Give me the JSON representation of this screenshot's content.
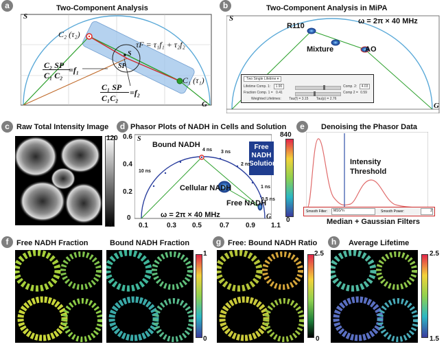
{
  "panels": {
    "a": {
      "badge": "a",
      "title": "Two-Component Analysis",
      "axis_s": "S",
      "axis_g": "G",
      "c2_label": "C₂ (τ₂)",
      "c1_label": "C₁ (τ₁)",
      "tau_f_eq": "τF = τ₁f₁ + τ₂f₂",
      "sp_label": "SP",
      "s_label": "S",
      "frac1_num": "C₂ SP",
      "frac1_den": "C₁ C₂",
      "frac1_eq": "=f₁",
      "frac2_num": "C₁ SP",
      "frac2_den": "C₁C₂",
      "frac2_eq": "=f₂"
    },
    "b": {
      "badge": "b",
      "title": "Two-Component Analysis in MiPA",
      "axis_s": "S",
      "axis_g": "G",
      "omega": "ω = 2π × 40 MHz",
      "label_r110": "R110",
      "label_mixture": "Mixture",
      "label_ao": "AO",
      "controls": {
        "dropdown": "Two Single Lifetime",
        "lifetime_comp1_label": "Lifetime Comp. 1:",
        "lifetime_comp1_value": "1.90",
        "comp2_label": "Comp. 2:",
        "comp2_value": "4.03",
        "fraction_comp1_label": "Fraction Comp. 1 =",
        "fraction_comp1_value": "0.41",
        "fraction_comp2_label": "Comp 2 =",
        "fraction_comp2_value": "0.59",
        "weighted_label": "Weighted Lifetimes:",
        "tau_f_text": "Tau(f) = 3.15",
        "tau_p_text": "Tau(p) = 2.76"
      }
    },
    "c": {
      "badge": "c",
      "title": "Raw Total Intensity Image",
      "cbar_max": "120",
      "cbar_min": "0"
    },
    "d": {
      "badge": "d",
      "title": "Phasor Plots of NADH in Cells and Solution",
      "axis_s": "S",
      "axis_g": "G",
      "bound_nadh": "Bound NADH",
      "cellular_nadh": "Cellular NADH",
      "free_nadh": "Free NADH",
      "free_solution": [
        "Free",
        "NADH",
        "Solution"
      ],
      "omega": "ω = 2π × 40 MHz",
      "ns_labels": [
        "10 ns",
        "4 ns",
        "3 ns",
        "2 ns",
        "1 ns",
        "0.5 ns"
      ],
      "y_ticks": [
        "0.6",
        "0.4",
        "0.2",
        "0"
      ],
      "x_ticks": [
        "0.1",
        "0.3",
        "0.5",
        "0.7",
        "0.9",
        "1.1"
      ],
      "cbar_max": "840",
      "cbar_min": "0"
    },
    "e": {
      "badge": "e",
      "title": "Denoising the Phasor Data",
      "threshold_label": [
        "Intensity",
        "Threshold"
      ],
      "smooth_filter_label": "Smooth Filter:",
      "smooth_filter_value": "M1G^n",
      "smooth_power_label": "Smooth Power:",
      "smooth_power_value": "2",
      "caption": "Median + Gaussian Filters"
    },
    "f": {
      "badge": "f",
      "title_free": "Free NADH Fraction",
      "title_bound": "Bound NADH Fraction",
      "cbar_max": "1",
      "cbar_min": "0"
    },
    "g": {
      "badge": "g",
      "title": "Free: Bound NADH Ratio",
      "cbar_max": "2.5",
      "cbar_min": "0"
    },
    "h": {
      "badge": "h",
      "title": "Average Lifetime",
      "cbar_max": "2.5",
      "cbar_min": "1.5"
    }
  },
  "colors": {
    "badge": "#7f7f7f",
    "semicircle": "#5aa9d8",
    "bound_marker": "#e0302a",
    "free_marker": "#2ca02c",
    "blob_blue": "#2b63b3",
    "callout_blue": "#1f3d8f",
    "curve_red": "#e06b6b",
    "threshold_line": "#2f4fa8"
  }
}
